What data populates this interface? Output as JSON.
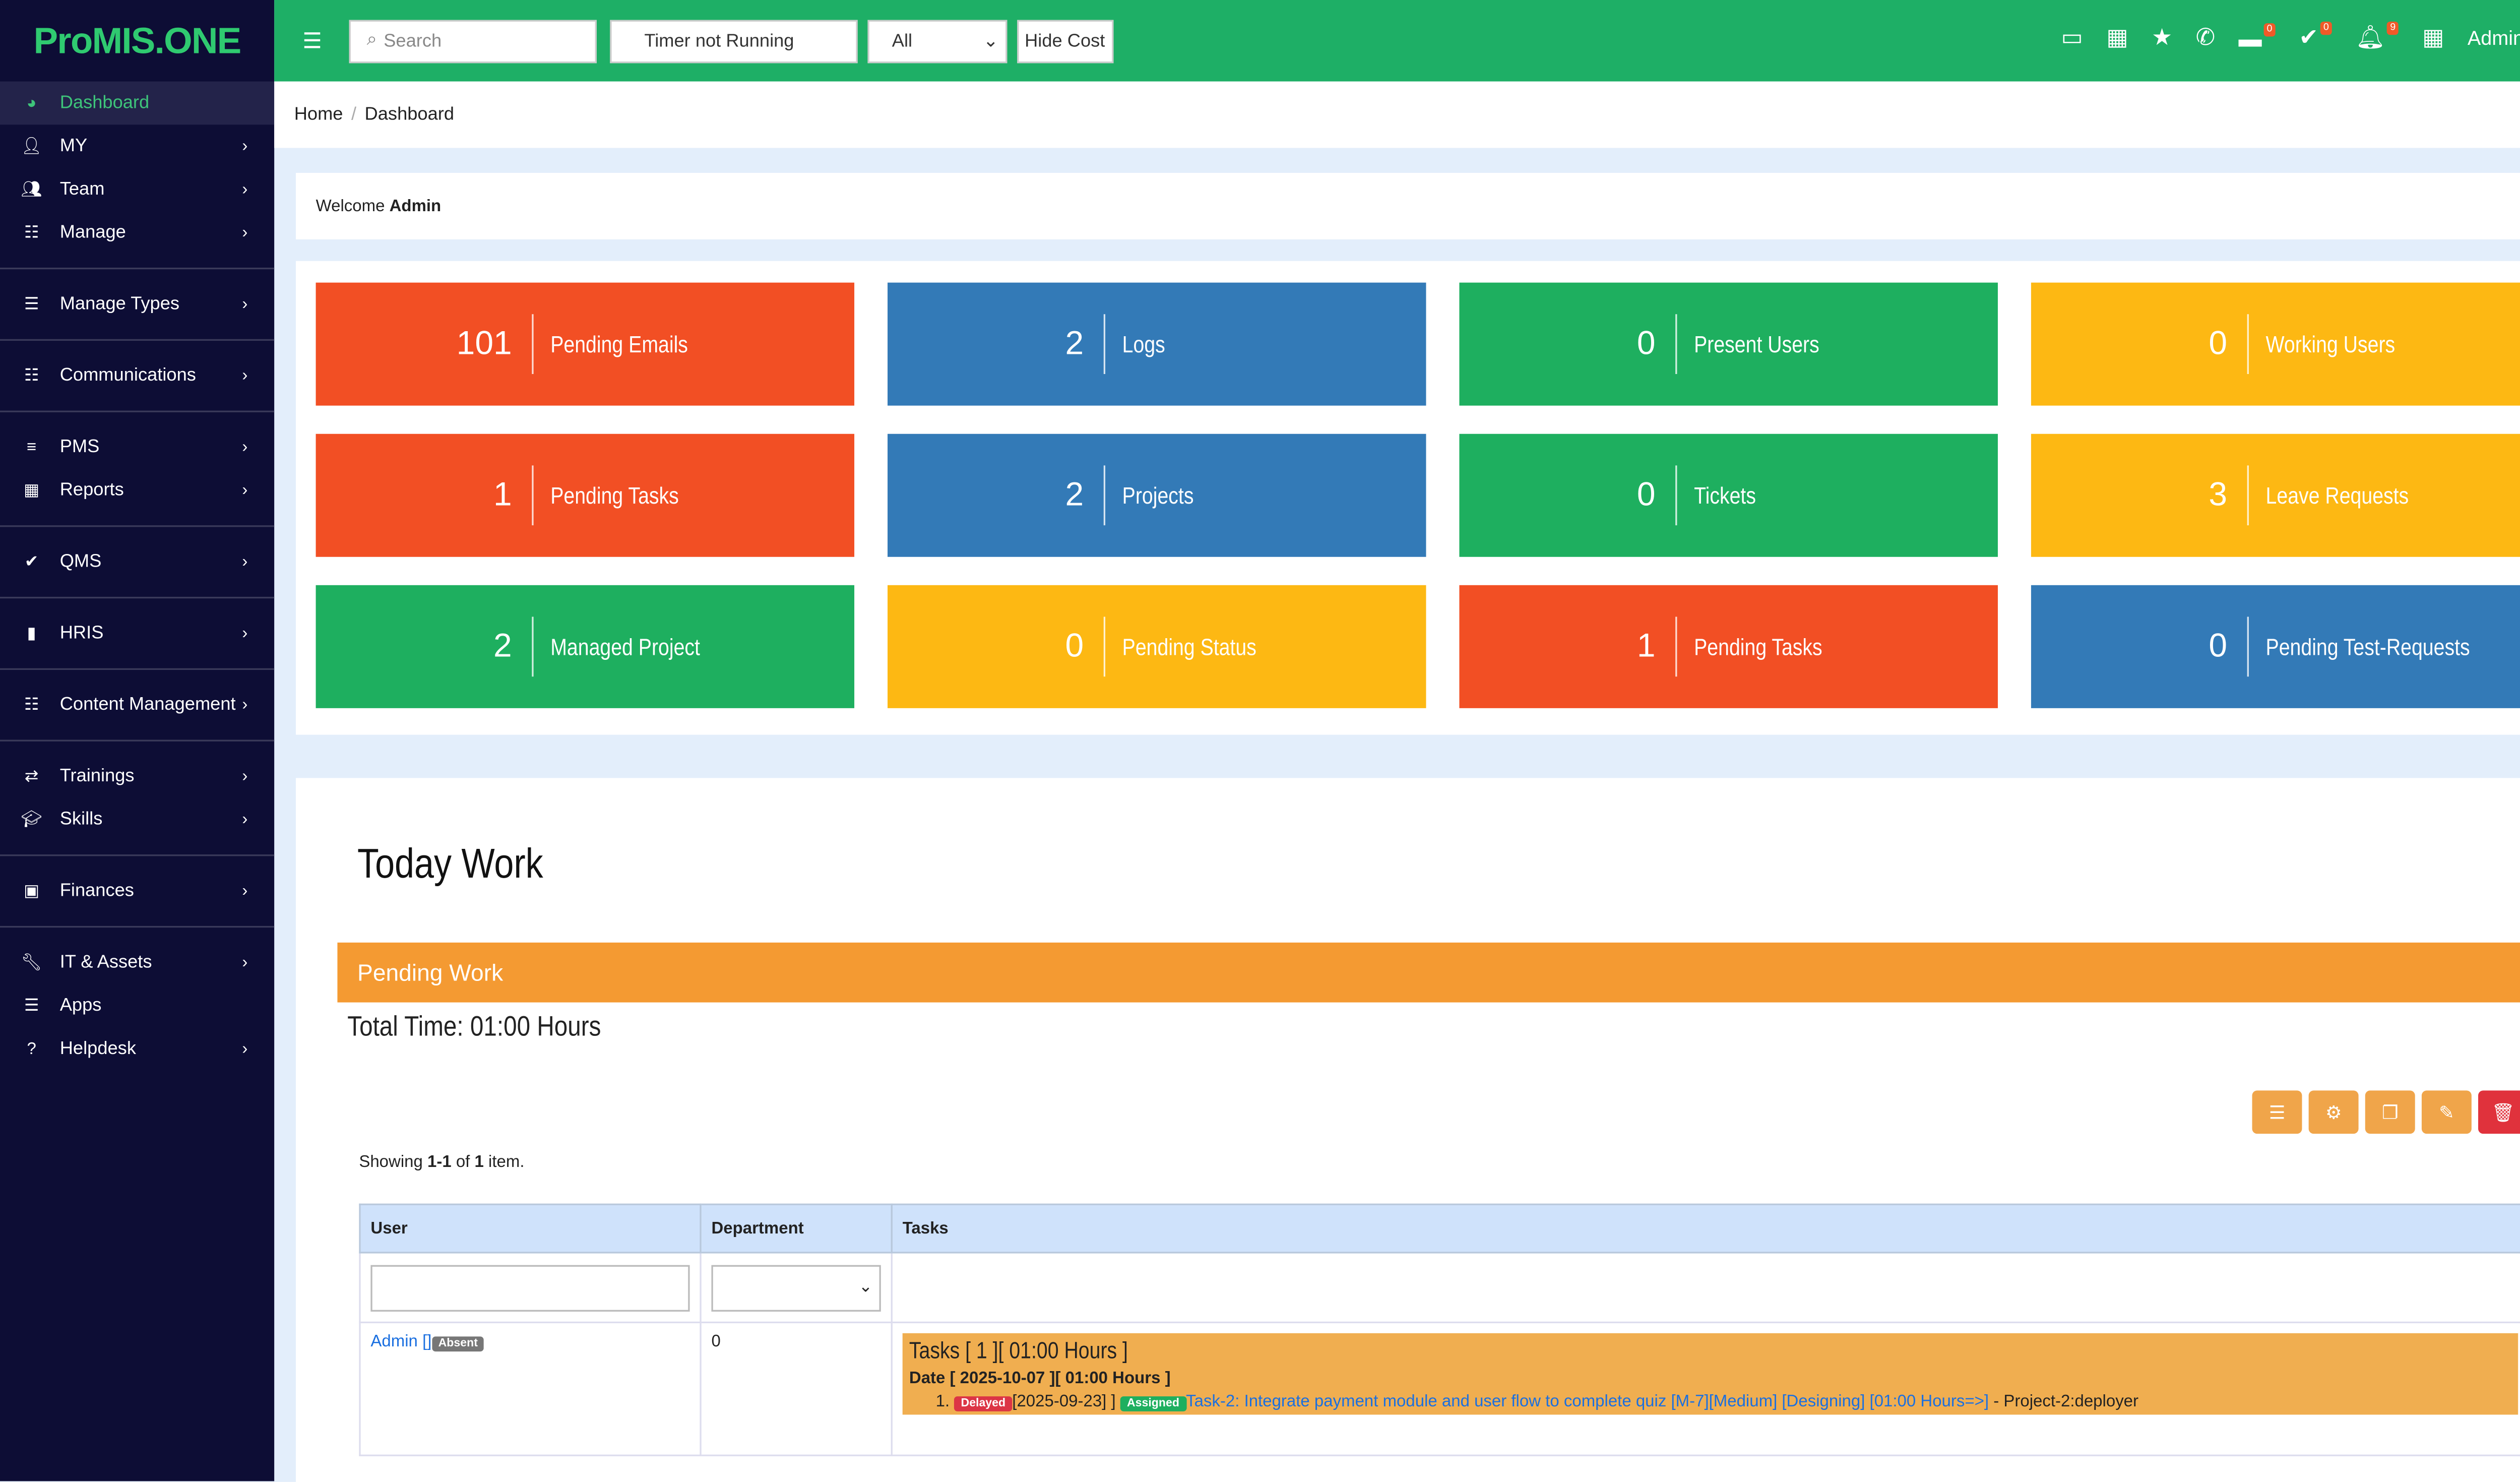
{
  "app": {
    "logo": "ProMIS.ONE"
  },
  "sidebar": {
    "items": [
      {
        "label": "Dashboard",
        "icon": "palette-icon"
      },
      {
        "label": "MY",
        "icon": "user-icon"
      },
      {
        "label": "Team",
        "icon": "users-icon"
      },
      {
        "label": "Manage",
        "icon": "list-check-icon"
      },
      {
        "label": "Manage Types",
        "icon": "list-icon"
      },
      {
        "label": "Communications",
        "icon": "list-check-icon"
      },
      {
        "label": "PMS",
        "icon": "bars-icon"
      },
      {
        "label": "Reports",
        "icon": "table-icon"
      },
      {
        "label": "QMS",
        "icon": "check-icon"
      },
      {
        "label": "HRIS",
        "icon": "clipboard-icon"
      },
      {
        "label": "Content Management",
        "icon": "list-check-icon"
      },
      {
        "label": "Trainings",
        "icon": "repeat-icon"
      },
      {
        "label": "Skills",
        "icon": "graduation-cap-icon"
      },
      {
        "label": "Finances",
        "icon": "money-icon"
      },
      {
        "label": "IT & Assets",
        "icon": "wrench-icon"
      },
      {
        "label": "Apps",
        "icon": "list-icon"
      },
      {
        "label": "Helpdesk",
        "icon": "question-icon"
      }
    ]
  },
  "topbar": {
    "search_placeholder": "Search",
    "timer": "Timer not Running",
    "filter": "All",
    "hide_cost": "Hide Cost",
    "badges": {
      "tickets": "0",
      "tasks": "0",
      "notifications": "9"
    },
    "user": "Admin"
  },
  "breadcrumb": {
    "home": "Home",
    "current": "Dashboard"
  },
  "welcome": {
    "prefix": "Welcome",
    "name": "Admin"
  },
  "cards": [
    {
      "value": "101",
      "label": "Pending Emails",
      "color": "#f24f24"
    },
    {
      "value": "2",
      "label": "Logs",
      "color": "#337ab7"
    },
    {
      "value": "0",
      "label": "Present Users",
      "color": "#1eaf5f"
    },
    {
      "value": "0",
      "label": "Working Users",
      "color": "#fdb813"
    },
    {
      "value": "1",
      "label": "Pending Tasks",
      "color": "#f24f24"
    },
    {
      "value": "2",
      "label": "Projects",
      "color": "#337ab7"
    },
    {
      "value": "0",
      "label": "Tickets",
      "color": "#1eaf5f"
    },
    {
      "value": "3",
      "label": "Leave Requests",
      "color": "#fdb813"
    },
    {
      "value": "2",
      "label": "Managed Project",
      "color": "#1eaf5f"
    },
    {
      "value": "0",
      "label": "Pending Status",
      "color": "#fdb813"
    },
    {
      "value": "1",
      "label": "Pending Tasks",
      "color": "#f24f24"
    },
    {
      "value": "0",
      "label": "Pending Test-Requests",
      "color": "#337ab7"
    }
  ],
  "work": {
    "title": "Today Work",
    "panel": "Pending Work",
    "total": "Total Time: 01:00 Hours",
    "showing": {
      "prefix": "Showing ",
      "range": "1-1",
      "mid": " of ",
      "total": "1",
      "suffix": " item."
    },
    "columns": [
      "User",
      "Department",
      "Tasks"
    ],
    "row": {
      "user": "Admin",
      "user_bracket": "[]",
      "status": "Absent",
      "department": "0",
      "tasks_header": "Tasks [ 1 ][ 01:00 Hours ]",
      "date_header": "Date [ 2025-10-07 ][ 01:00 Hours ]",
      "item_no": "1.",
      "delayed": "Delayed",
      "date": "[2025-09-23] ]",
      "assigned": "Assigned",
      "task_link": "Task-2: Integrate payment module and user flow to complete quiz [M-7][Medium] [Designing] [01:00 Hours=>]",
      "project": " - Project-2:deployer"
    }
  }
}
